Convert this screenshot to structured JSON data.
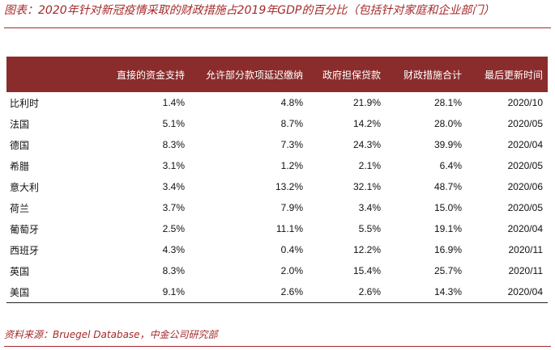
{
  "title": "图表：2020年针对新冠疫情采取的财政措施占2019年GDP的百分比（包括针对家庭和企业部门）",
  "table": {
    "columns": [
      "",
      "直接的资金支持",
      "允许部分款项延迟缴纳",
      "政府担保贷款",
      "财政措施合计",
      "最后更新时间"
    ],
    "rows": [
      {
        "country": "比利时",
        "direct": "1.4%",
        "deferral": "4.8%",
        "guarantee": "21.9%",
        "total": "28.1%",
        "updated": "2020/10"
      },
      {
        "country": "法国",
        "direct": "5.1%",
        "deferral": "8.7%",
        "guarantee": "14.2%",
        "total": "28.0%",
        "updated": "2020/05"
      },
      {
        "country": "德国",
        "direct": "8.3%",
        "deferral": "7.3%",
        "guarantee": "24.3%",
        "total": "39.9%",
        "updated": "2020/04"
      },
      {
        "country": "希腊",
        "direct": "3.1%",
        "deferral": "1.2%",
        "guarantee": "2.1%",
        "total": "6.4%",
        "updated": "2020/05"
      },
      {
        "country": "意大利",
        "direct": "3.4%",
        "deferral": "13.2%",
        "guarantee": "32.1%",
        "total": "48.7%",
        "updated": "2020/06"
      },
      {
        "country": "荷兰",
        "direct": "3.7%",
        "deferral": "7.9%",
        "guarantee": "3.4%",
        "total": "15.0%",
        "updated": "2020/05"
      },
      {
        "country": "葡萄牙",
        "direct": "2.5%",
        "deferral": "11.1%",
        "guarantee": "5.5%",
        "total": "19.1%",
        "updated": "2020/04"
      },
      {
        "country": "西班牙",
        "direct": "4.3%",
        "deferral": "0.4%",
        "guarantee": "12.2%",
        "total": "16.9%",
        "updated": "2020/11"
      },
      {
        "country": "英国",
        "direct": "8.3%",
        "deferral": "2.0%",
        "guarantee": "15.4%",
        "total": "25.7%",
        "updated": "2020/11"
      },
      {
        "country": "美国",
        "direct": "9.1%",
        "deferral": "2.6%",
        "guarantee": "2.6%",
        "total": "14.3%",
        "updated": "2020/04"
      }
    ]
  },
  "source": "资料来源：Bruegel Database，中金公司研究部",
  "colors": {
    "accent": "#a52a2a",
    "header_bg": "#8b2c2c",
    "header_text": "#ffffff"
  }
}
